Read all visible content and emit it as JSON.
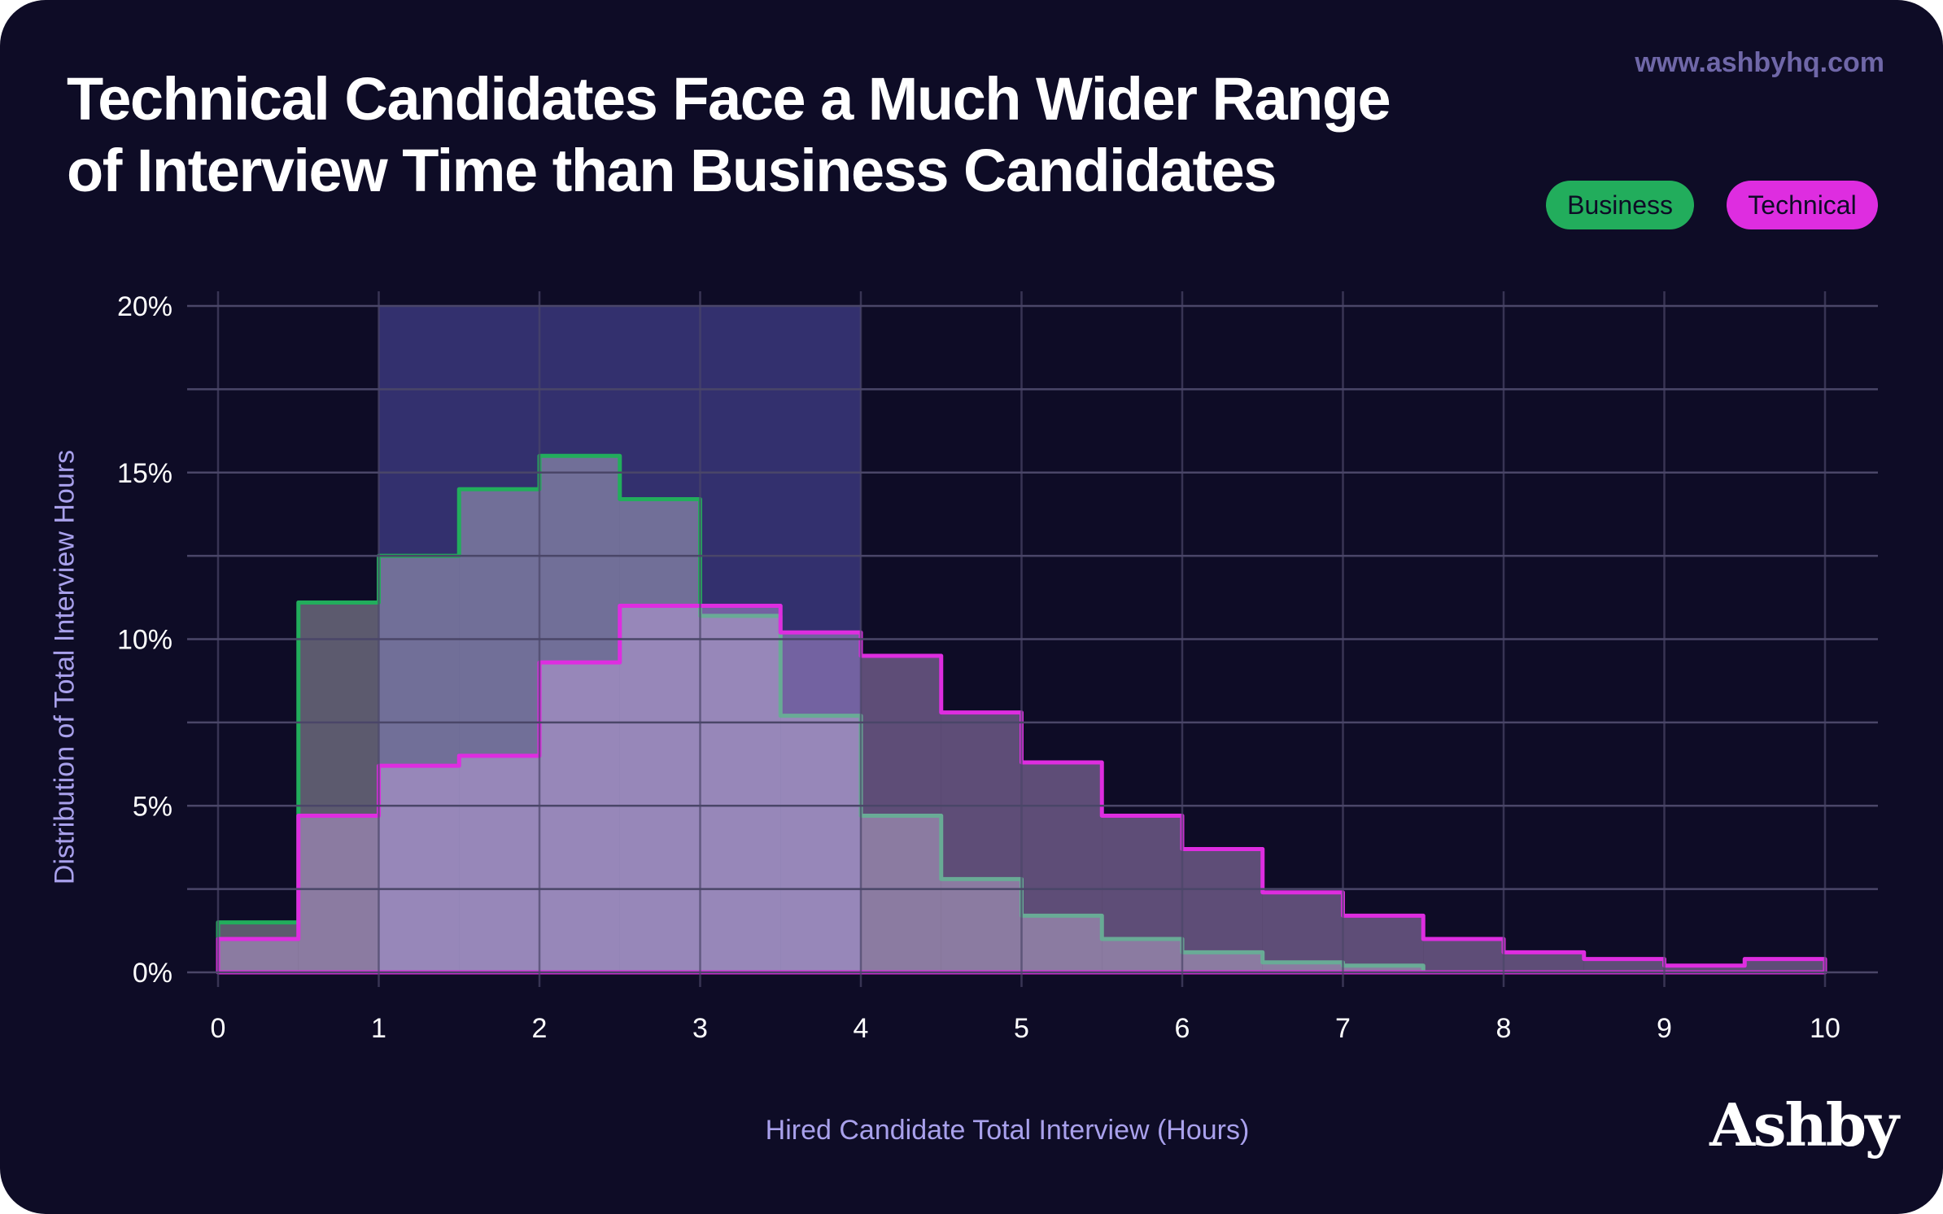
{
  "header": {
    "title_line1": "Technical Candidates Face a Much Wider Range",
    "title_line2": "of Interview Time than Business Candidates",
    "website": "www.ashbyhq.com"
  },
  "brand": "Ashby",
  "colors": {
    "background": "#0e0c26",
    "business": "#22ad5c",
    "technical": "#de2de0",
    "highlight": "#33306e",
    "grid": "#4a4668",
    "axis_label": "#a9a1ec"
  },
  "chart_data": {
    "type": "histogram-step",
    "title": "Technical Candidates Face a Much Wider Range of Interview Time than Business Candidates",
    "xlabel": "Hired Candidate Total Interview (Hours)",
    "ylabel": "Distribution of Total Interview Hours",
    "xlim": [
      0,
      10
    ],
    "ylim": [
      0,
      20
    ],
    "x_ticks": [
      "0",
      "1",
      "2",
      "3",
      "4",
      "5",
      "6",
      "7",
      "8",
      "9",
      "10"
    ],
    "y_ticks": [
      "0%",
      "5%",
      "10%",
      "15%",
      "20%"
    ],
    "y_tick_values": [
      0,
      5,
      10,
      15,
      20
    ],
    "bin_width": 0.5,
    "bin_starts": [
      0,
      0.5,
      1,
      1.5,
      2,
      2.5,
      3,
      3.5,
      4,
      4.5,
      5,
      5.5,
      6,
      6.5,
      7,
      7.5,
      8,
      8.5,
      9,
      9.5
    ],
    "highlight_range": [
      1,
      4
    ],
    "grid": true,
    "legend_position": "top-right",
    "series": [
      {
        "name": "Business",
        "values": [
          1.5,
          11.1,
          12.5,
          14.5,
          15.5,
          14.2,
          10.7,
          7.7,
          4.7,
          2.8,
          1.7,
          1.0,
          0.6,
          0.3,
          0.2,
          0,
          0,
          0,
          0,
          0
        ]
      },
      {
        "name": "Technical",
        "values": [
          1.0,
          4.7,
          6.2,
          6.5,
          9.3,
          11.0,
          11.0,
          10.2,
          9.5,
          7.8,
          6.3,
          4.7,
          3.7,
          2.4,
          1.7,
          1.0,
          0.6,
          0.4,
          0.2,
          0.4
        ]
      }
    ]
  }
}
